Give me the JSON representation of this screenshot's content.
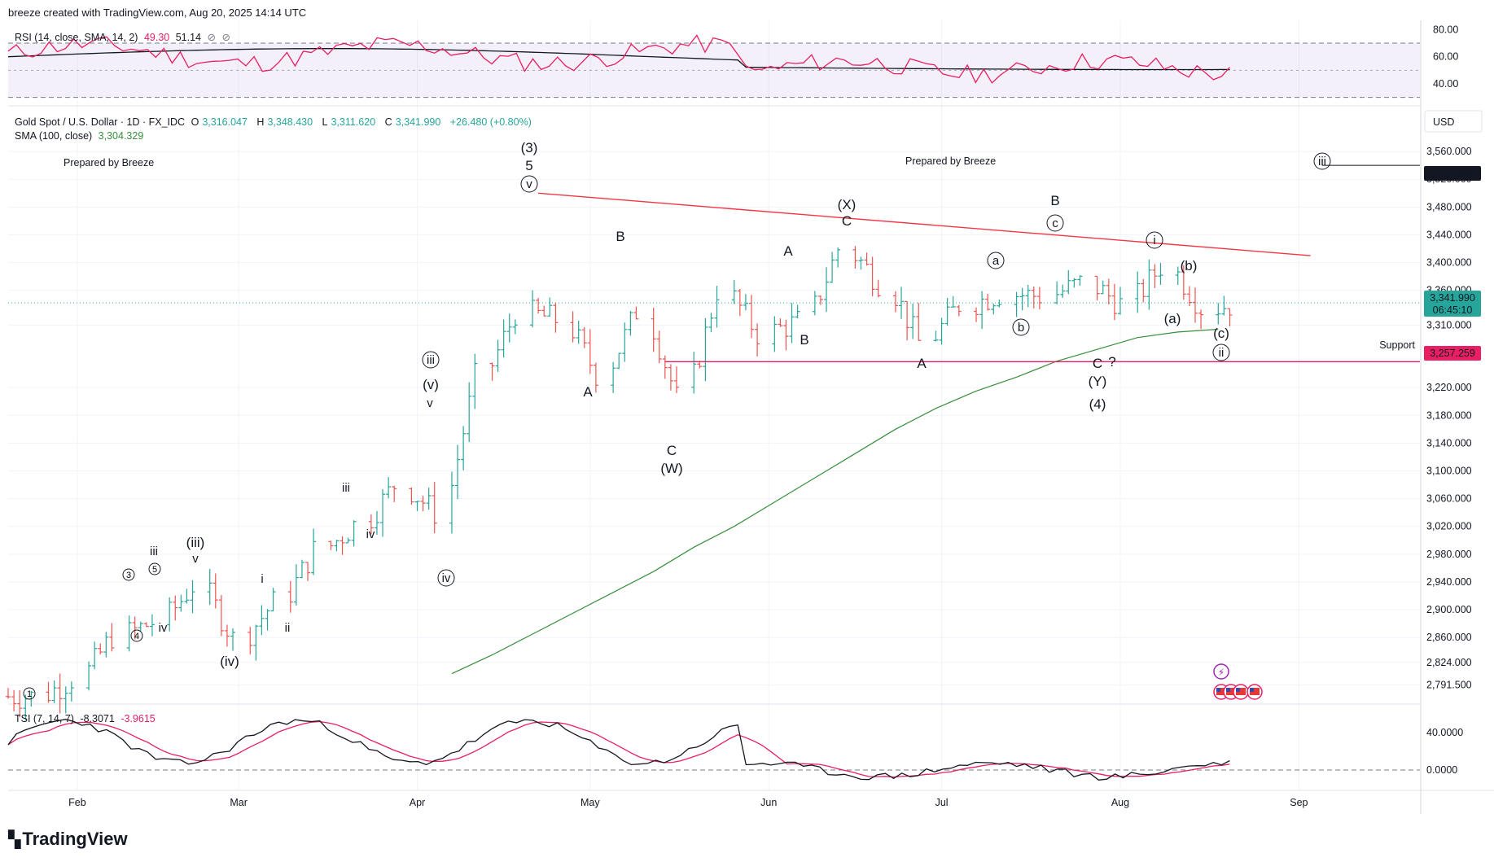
{
  "header": {
    "byline": "breeze created with TradingView.com, Aug 20, 2025 14:14 UTC"
  },
  "rsi": {
    "legend_name": "RSI (14, close, SMA, 14, 2)",
    "legend_rsi": "49.30",
    "legend_sma": "51.14",
    "axis_ticks": [
      "80.00",
      "60.00",
      "40.00"
    ],
    "colors": {
      "rsi": "#e91e63",
      "sma": "#131722",
      "band": "#7e57c2"
    }
  },
  "price": {
    "symbol": "Gold Spot / U.S. Dollar · 1D · FX_IDC",
    "o_label": "O",
    "o": "3,316.047",
    "h_label": "H",
    "h": "3,348.430",
    "l_label": "L",
    "l": "3,311.620",
    "c_label": "C",
    "c": "3,341.990",
    "change": "+26.480 (+0.80%)",
    "sma_name": "SMA (100, close)",
    "sma_value": "3,304.329",
    "currency": "USD",
    "axis_ticks": [
      "3,560.000",
      "3,520.000",
      "3,480.000",
      "3,440.000",
      "3,400.000",
      "3,360.000",
      "3,310.000",
      "3,220.000",
      "3,180.000",
      "3,140.000",
      "3,100.000",
      "3,060.000",
      "3,020.000",
      "2,980.000",
      "2,940.000",
      "2,900.000",
      "2,860.000",
      "2,824.000",
      "2,791.500"
    ],
    "badge_target": "3,540.000",
    "badge_last": "3,341.990",
    "badge_countdown": "06:45:10",
    "badge_support": "3,257.259",
    "support_label": "Support",
    "prepared_left": "Prepared by Breeze",
    "prepared_right": "Prepared by Breeze",
    "colors": {
      "up": "#26a69a",
      "down": "#ef5350",
      "sma": "#388e3c",
      "trendline": "#f23645",
      "support": "#e91e63"
    }
  },
  "waves": {
    "w_3": "(3)",
    "w_5": "5",
    "w_v_circ": "v",
    "w_X": "(X)",
    "w_XC": "C",
    "w_B_top": "B",
    "w_c_circ": "c",
    "w_i_circ": "i",
    "w_b_paren": "(b)",
    "w_a_paren": "(a)",
    "w_c_paren": "(c)",
    "w_ii_circ": "ii",
    "w_iii_circ_right": "iii",
    "w_B_may": "B",
    "w_A_may": "A",
    "w_C_w": "C",
    "w_W": "(W)",
    "w_A_jun": "A",
    "w_B_jun": "B",
    "w_A_jul": "A",
    "w_a_circ": "a",
    "w_b_circ": "b",
    "w_C_y": "C",
    "w_q": "?",
    "w_Y": "(Y)",
    "w_4": "(4)",
    "w_iii_circ_apr": "iii",
    "w_v_paren": "(v)",
    "w_v_small": "v",
    "w_iv_circ": "iv",
    "w_iii_small": "iii",
    "w_iv_small": "iv",
    "w_i_small": "i",
    "w_ii_small": "ii",
    "w_iii_paren": "(iii)",
    "w_v_feb": "v",
    "w_iv_paren": "(iv)",
    "w_iii_feb": "iii",
    "w_3c": "3",
    "w_5c": "5",
    "w_4c": "4",
    "w_iv_feb": "iv",
    "w_1c": "1"
  },
  "tsi": {
    "legend_name": "TSI (7, 14, 7)",
    "legend_tsi": "-8.3071",
    "legend_signal": "-3.9615",
    "axis_ticks": [
      "40.0000",
      "0.0000"
    ],
    "colors": {
      "tsi": "#131722",
      "signal": "#e91e63"
    }
  },
  "time_axis": {
    "labels": [
      "Feb",
      "Mar",
      "Apr",
      "May",
      "Jun",
      "Jul",
      "Aug",
      "Sep"
    ]
  },
  "branding": {
    "logo_text": "TradingView",
    "logo_icon": "tradingview-logo-icon"
  },
  "events": {
    "icons": [
      "lightning-icon",
      "us-flag-icon",
      "us-flag-icon",
      "us-flag-icon",
      "us-flag-icon"
    ]
  },
  "chart_data": {
    "type": "candlestick",
    "title": "Gold Spot / U.S. Dollar · 1D · FX_IDC",
    "ylim": [
      2770,
      3600
    ],
    "x": [
      "2025-01-20",
      "2025-01-27",
      "2025-02-03",
      "2025-02-10",
      "2025-02-17",
      "2025-02-24",
      "2025-03-03",
      "2025-03-10",
      "2025-03-17",
      "2025-03-24",
      "2025-03-31",
      "2025-04-07",
      "2025-04-14",
      "2025-04-21",
      "2025-04-28",
      "2025-05-05",
      "2025-05-12",
      "2025-05-19",
      "2025-05-26",
      "2025-06-02",
      "2025-06-09",
      "2025-06-16",
      "2025-06-23",
      "2025-06-30",
      "2025-07-07",
      "2025-07-14",
      "2025-07-21",
      "2025-07-28",
      "2025-08-04",
      "2025-08-11",
      "2025-08-18"
    ],
    "series": [
      {
        "name": "price",
        "values": [
          2775,
          2800,
          2862,
          2882,
          2935,
          2858,
          2910,
          2985,
          3022,
          3080,
          3040,
          3235,
          3328,
          3318,
          3240,
          3330,
          3205,
          3360,
          3298,
          3315,
          3420,
          3372,
          3285,
          3340,
          3355,
          3352,
          3370,
          3340,
          3395,
          3335,
          3342
        ]
      },
      {
        "name": "SMA (100, close)",
        "values": [
          null,
          null,
          null,
          null,
          null,
          null,
          null,
          null,
          null,
          null,
          null,
          2808,
          2835,
          2865,
          2895,
          2925,
          2955,
          2990,
          3020,
          3055,
          3090,
          3125,
          3160,
          3190,
          3215,
          3235,
          3258,
          3275,
          3292,
          3300,
          3304
        ]
      }
    ],
    "annotations": [
      {
        "type": "trendline",
        "from": [
          "2025-04-22",
          3500
        ],
        "to": [
          "2025-09-03",
          3410
        ]
      },
      {
        "type": "horizontal",
        "from": "2025-05-14",
        "y": 3257.259,
        "text": "Support"
      }
    ]
  }
}
